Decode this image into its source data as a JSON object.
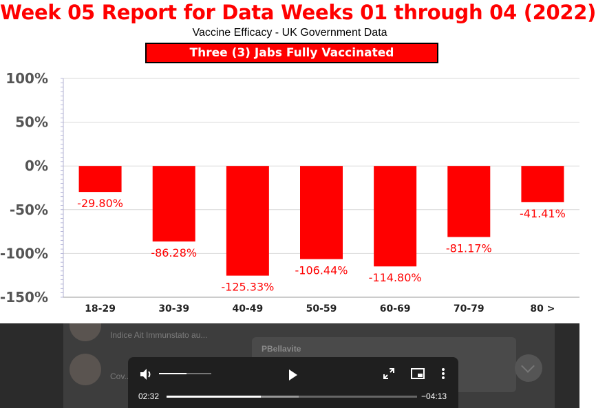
{
  "header": {
    "title": "Week 05 Report for  Data Weeks 01 through 04 (2022)",
    "subtitle": "Vaccine Efficacy - UK Government Data",
    "banner": "Three (3) Jabs Fully Vaccinated"
  },
  "colors": {
    "accent": "#ff0000",
    "banner_bg": "#ff0000"
  },
  "chart_data": {
    "type": "bar",
    "categories": [
      "18-29",
      "30-39",
      "40-49",
      "50-59",
      "60-69",
      "70-79",
      "80 >"
    ],
    "values": [
      -29.8,
      -86.28,
      -125.33,
      -106.44,
      -114.8,
      -81.17,
      -41.41
    ],
    "data_labels": [
      "-29.80%",
      "-86.28%",
      "-125.33%",
      "-106.44%",
      "-114.80%",
      "-81.17%",
      "-41.41%"
    ],
    "yticks": [
      100,
      50,
      0,
      -50,
      -100,
      -150
    ],
    "ytick_labels": [
      "100%",
      "50%",
      "0%",
      "-50%",
      "-100%",
      "-150%"
    ],
    "ylim": [
      -150,
      100
    ],
    "grid": true,
    "bar_color": "#ff0000"
  },
  "background_chat": {
    "item1_preview": "Indice Ait Immunstato au...",
    "item2_preview": "Cov...",
    "bubble_author": "PBellavite"
  },
  "player": {
    "current_time": "02:32",
    "remaining_time": "−04:13",
    "progress": 0.376,
    "buffered": 0.527,
    "volume": 0.53,
    "icons": [
      "volume-icon",
      "play-icon",
      "fullscreen-icon",
      "picture-in-picture-icon",
      "more-menu-icon"
    ]
  }
}
